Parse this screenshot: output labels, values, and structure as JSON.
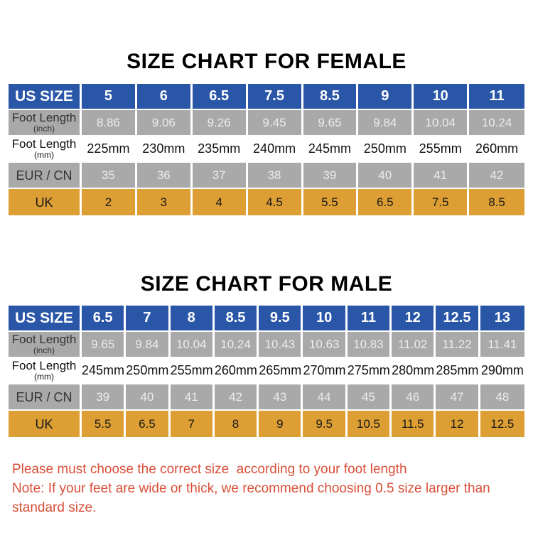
{
  "colors": {
    "header_blue": "#2a56a8",
    "row_gray": "#a9a9a9",
    "row_orange": "#dd9e33",
    "note_red": "#d84f38",
    "title_black": "#000000",
    "background": "#ffffff"
  },
  "chart_data": [
    {
      "type": "table",
      "title": "SIZE CHART FOR FEMALE",
      "rows": [
        {
          "style": "header",
          "label": "US SIZE",
          "sublabel": "",
          "values": [
            "5",
            "6",
            "6.5",
            "7.5",
            "8.5",
            "9",
            "10",
            "11"
          ]
        },
        {
          "style": "gray",
          "label": "Foot Length",
          "sublabel": "(inch)",
          "values": [
            "8.86",
            "9.06",
            "9.26",
            "9.45",
            "9.65",
            "9.84",
            "10.04",
            "10.24"
          ]
        },
        {
          "style": "white",
          "label": "Foot Length",
          "sublabel": "(mm)",
          "values": [
            "225mm",
            "230mm",
            "235mm",
            "240mm",
            "245mm",
            "250mm",
            "255mm",
            "260mm"
          ]
        },
        {
          "style": "gray no-sub",
          "label": "EUR / CN",
          "sublabel": "",
          "values": [
            "35",
            "36",
            "37",
            "38",
            "39",
            "40",
            "41",
            "42"
          ]
        },
        {
          "style": "orange",
          "label": "UK",
          "sublabel": "",
          "values": [
            "2",
            "3",
            "4",
            "4.5",
            "5.5",
            "6.5",
            "7.5",
            "8.5"
          ]
        }
      ]
    },
    {
      "type": "table",
      "title": "SIZE CHART FOR MALE",
      "rows": [
        {
          "style": "header",
          "label": "US SIZE",
          "sublabel": "",
          "values": [
            "6.5",
            "7",
            "8",
            "8.5",
            "9.5",
            "10",
            "11",
            "12",
            "12.5",
            "13"
          ]
        },
        {
          "style": "gray",
          "label": "Foot Length",
          "sublabel": "(inch)",
          "values": [
            "9.65",
            "9.84",
            "10.04",
            "10.24",
            "10.43",
            "10.63",
            "10.83",
            "11.02",
            "11.22",
            "11.41"
          ]
        },
        {
          "style": "white",
          "label": "Foot Length",
          "sublabel": "(mm)",
          "values": [
            "245mm",
            "250mm",
            "255mm",
            "260mm",
            "265mm",
            "270mm",
            "275mm",
            "280mm",
            "285mm",
            "290mm"
          ]
        },
        {
          "style": "gray no-sub",
          "label": "EUR / CN",
          "sublabel": "",
          "values": [
            "39",
            "40",
            "41",
            "42",
            "43",
            "44",
            "45",
            "46",
            "47",
            "48"
          ]
        },
        {
          "style": "orange",
          "label": "UK",
          "sublabel": "",
          "values": [
            "5.5",
            "6.5",
            "7",
            "8",
            "9",
            "9.5",
            "10.5",
            "11.5",
            "12",
            "12.5"
          ]
        }
      ]
    }
  ],
  "notes": {
    "line1": "Please must choose the correct size  according to your foot length",
    "line2": "Note: If your feet are wide or thick, we recommend choosing 0.5 size larger than standard size."
  }
}
